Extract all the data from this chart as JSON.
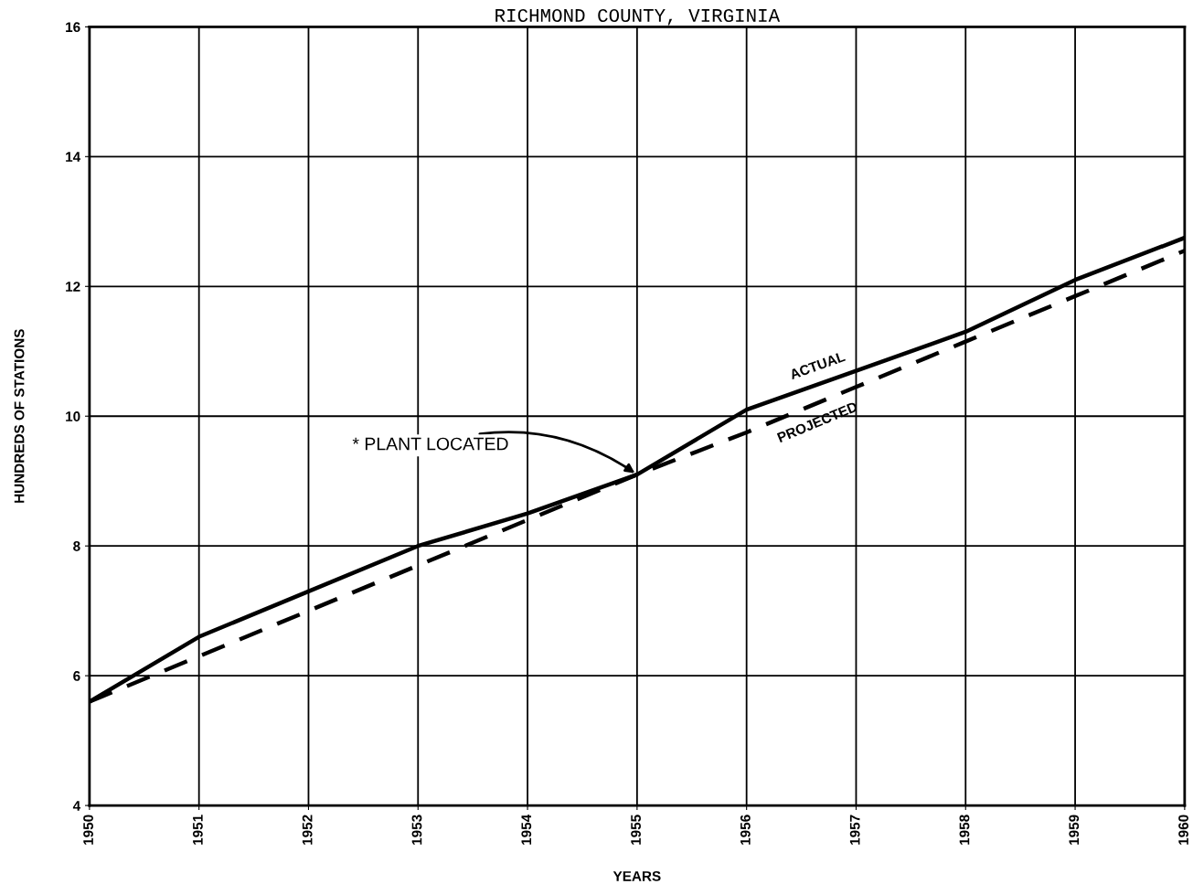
{
  "chart_data": {
    "type": "line",
    "title": "RICHMOND COUNTY, VIRGINIA",
    "xlabel": "YEARS",
    "ylabel": "HUNDREDS OF STATIONS",
    "x": [
      1950,
      1951,
      1952,
      1953,
      1954,
      1955,
      1956,
      1957,
      1958,
      1959,
      1960
    ],
    "series": [
      {
        "name": "ACTUAL",
        "color": "#000000",
        "line_style": "solid",
        "values": [
          5.6,
          6.6,
          7.3,
          8.0,
          8.5,
          9.1,
          10.1,
          10.7,
          11.3,
          12.1,
          12.75
        ]
      },
      {
        "name": "PROJECTED",
        "color": "#000000",
        "line_style": "dashed",
        "values": [
          5.6,
          6.3,
          7.0,
          7.7,
          8.4,
          9.1,
          9.75,
          10.45,
          11.15,
          11.85,
          12.55
        ]
      }
    ],
    "annotations": [
      {
        "text": "* PLANT LOCATED",
        "x": 1955,
        "y": 9.1
      }
    ],
    "xlim": [
      1950,
      1960
    ],
    "xticks": [
      1950,
      1951,
      1952,
      1953,
      1954,
      1955,
      1956,
      1957,
      1958,
      1959,
      1960
    ],
    "ylim": [
      4,
      16
    ],
    "yticks": [
      4,
      6,
      8,
      10,
      12,
      14,
      16
    ],
    "grid": true,
    "legend": false,
    "marker": "none"
  }
}
